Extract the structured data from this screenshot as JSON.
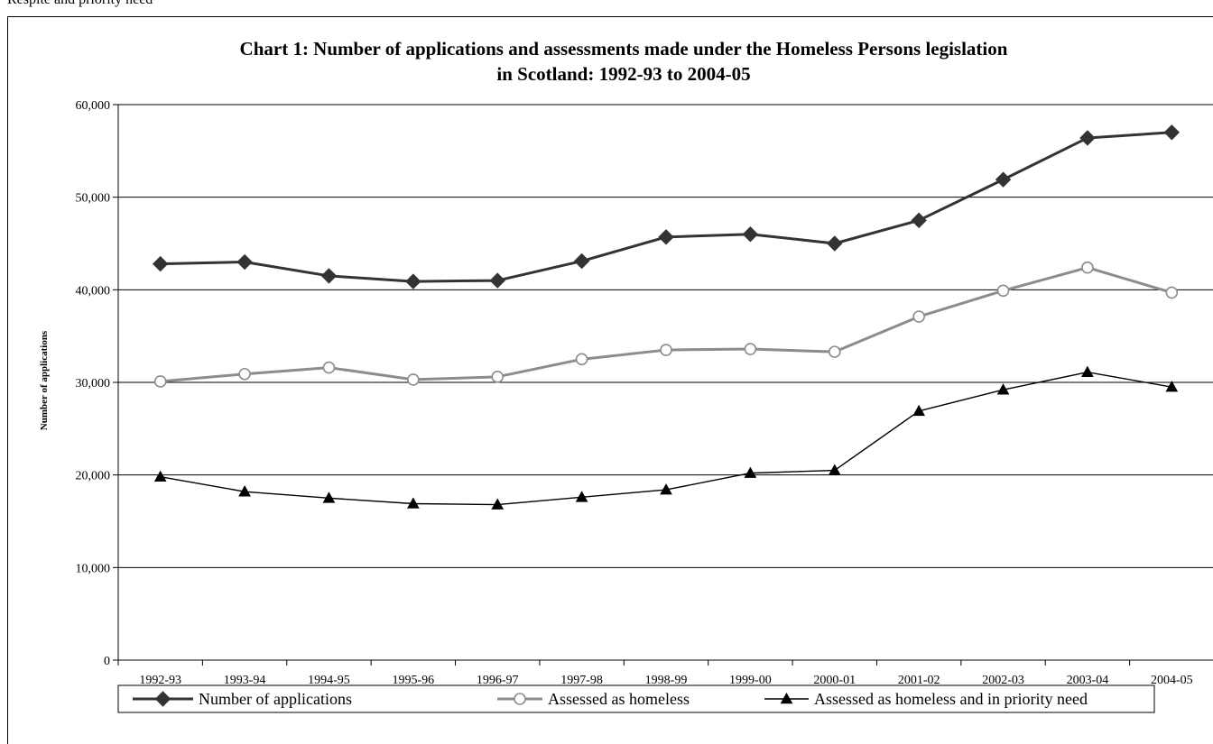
{
  "page": {
    "top_text": "Respite and priority need"
  },
  "chart_data": {
    "type": "line",
    "title_line1": "Chart 1: Number of applications and assessments made under the Homeless Persons legislation",
    "title_line2": "in Scotland: 1992-93 to 2004-05",
    "xlabel": "",
    "ylabel": "Number of applications",
    "ylim": [
      0,
      60000
    ],
    "yticks": [
      0,
      10000,
      20000,
      30000,
      40000,
      50000,
      60000
    ],
    "ytick_labels": [
      "0",
      "10,000",
      "20,000",
      "30,000",
      "40,000",
      "50,000",
      "60,000"
    ],
    "grid": true,
    "legend_position": "bottom",
    "categories": [
      "1992-93",
      "1993-94",
      "1994-95",
      "1995-96",
      "1996-97",
      "1997-98",
      "1998-99",
      "1999-00",
      "2000-01",
      "2001-02",
      "2002-03",
      "2003-04",
      "2004-05"
    ],
    "series": [
      {
        "name": "Number of applications",
        "color": "#333333",
        "marker": "diamond",
        "values": [
          42800,
          43000,
          41500,
          40900,
          41000,
          43100,
          45700,
          46000,
          45000,
          47500,
          51900,
          56400,
          57000
        ]
      },
      {
        "name": "Assessed as homeless",
        "color": "#8c8c8c",
        "marker": "open-circle",
        "values": [
          30100,
          30900,
          31600,
          30300,
          30600,
          32500,
          33500,
          33600,
          33300,
          37100,
          39900,
          42400,
          39700
        ]
      },
      {
        "name": "Assessed as homeless and in priority need",
        "color": "#000000",
        "marker": "triangle",
        "values": [
          19800,
          18200,
          17500,
          16900,
          16800,
          17600,
          18400,
          20200,
          20500,
          26900,
          29200,
          31100,
          29500
        ]
      }
    ]
  }
}
